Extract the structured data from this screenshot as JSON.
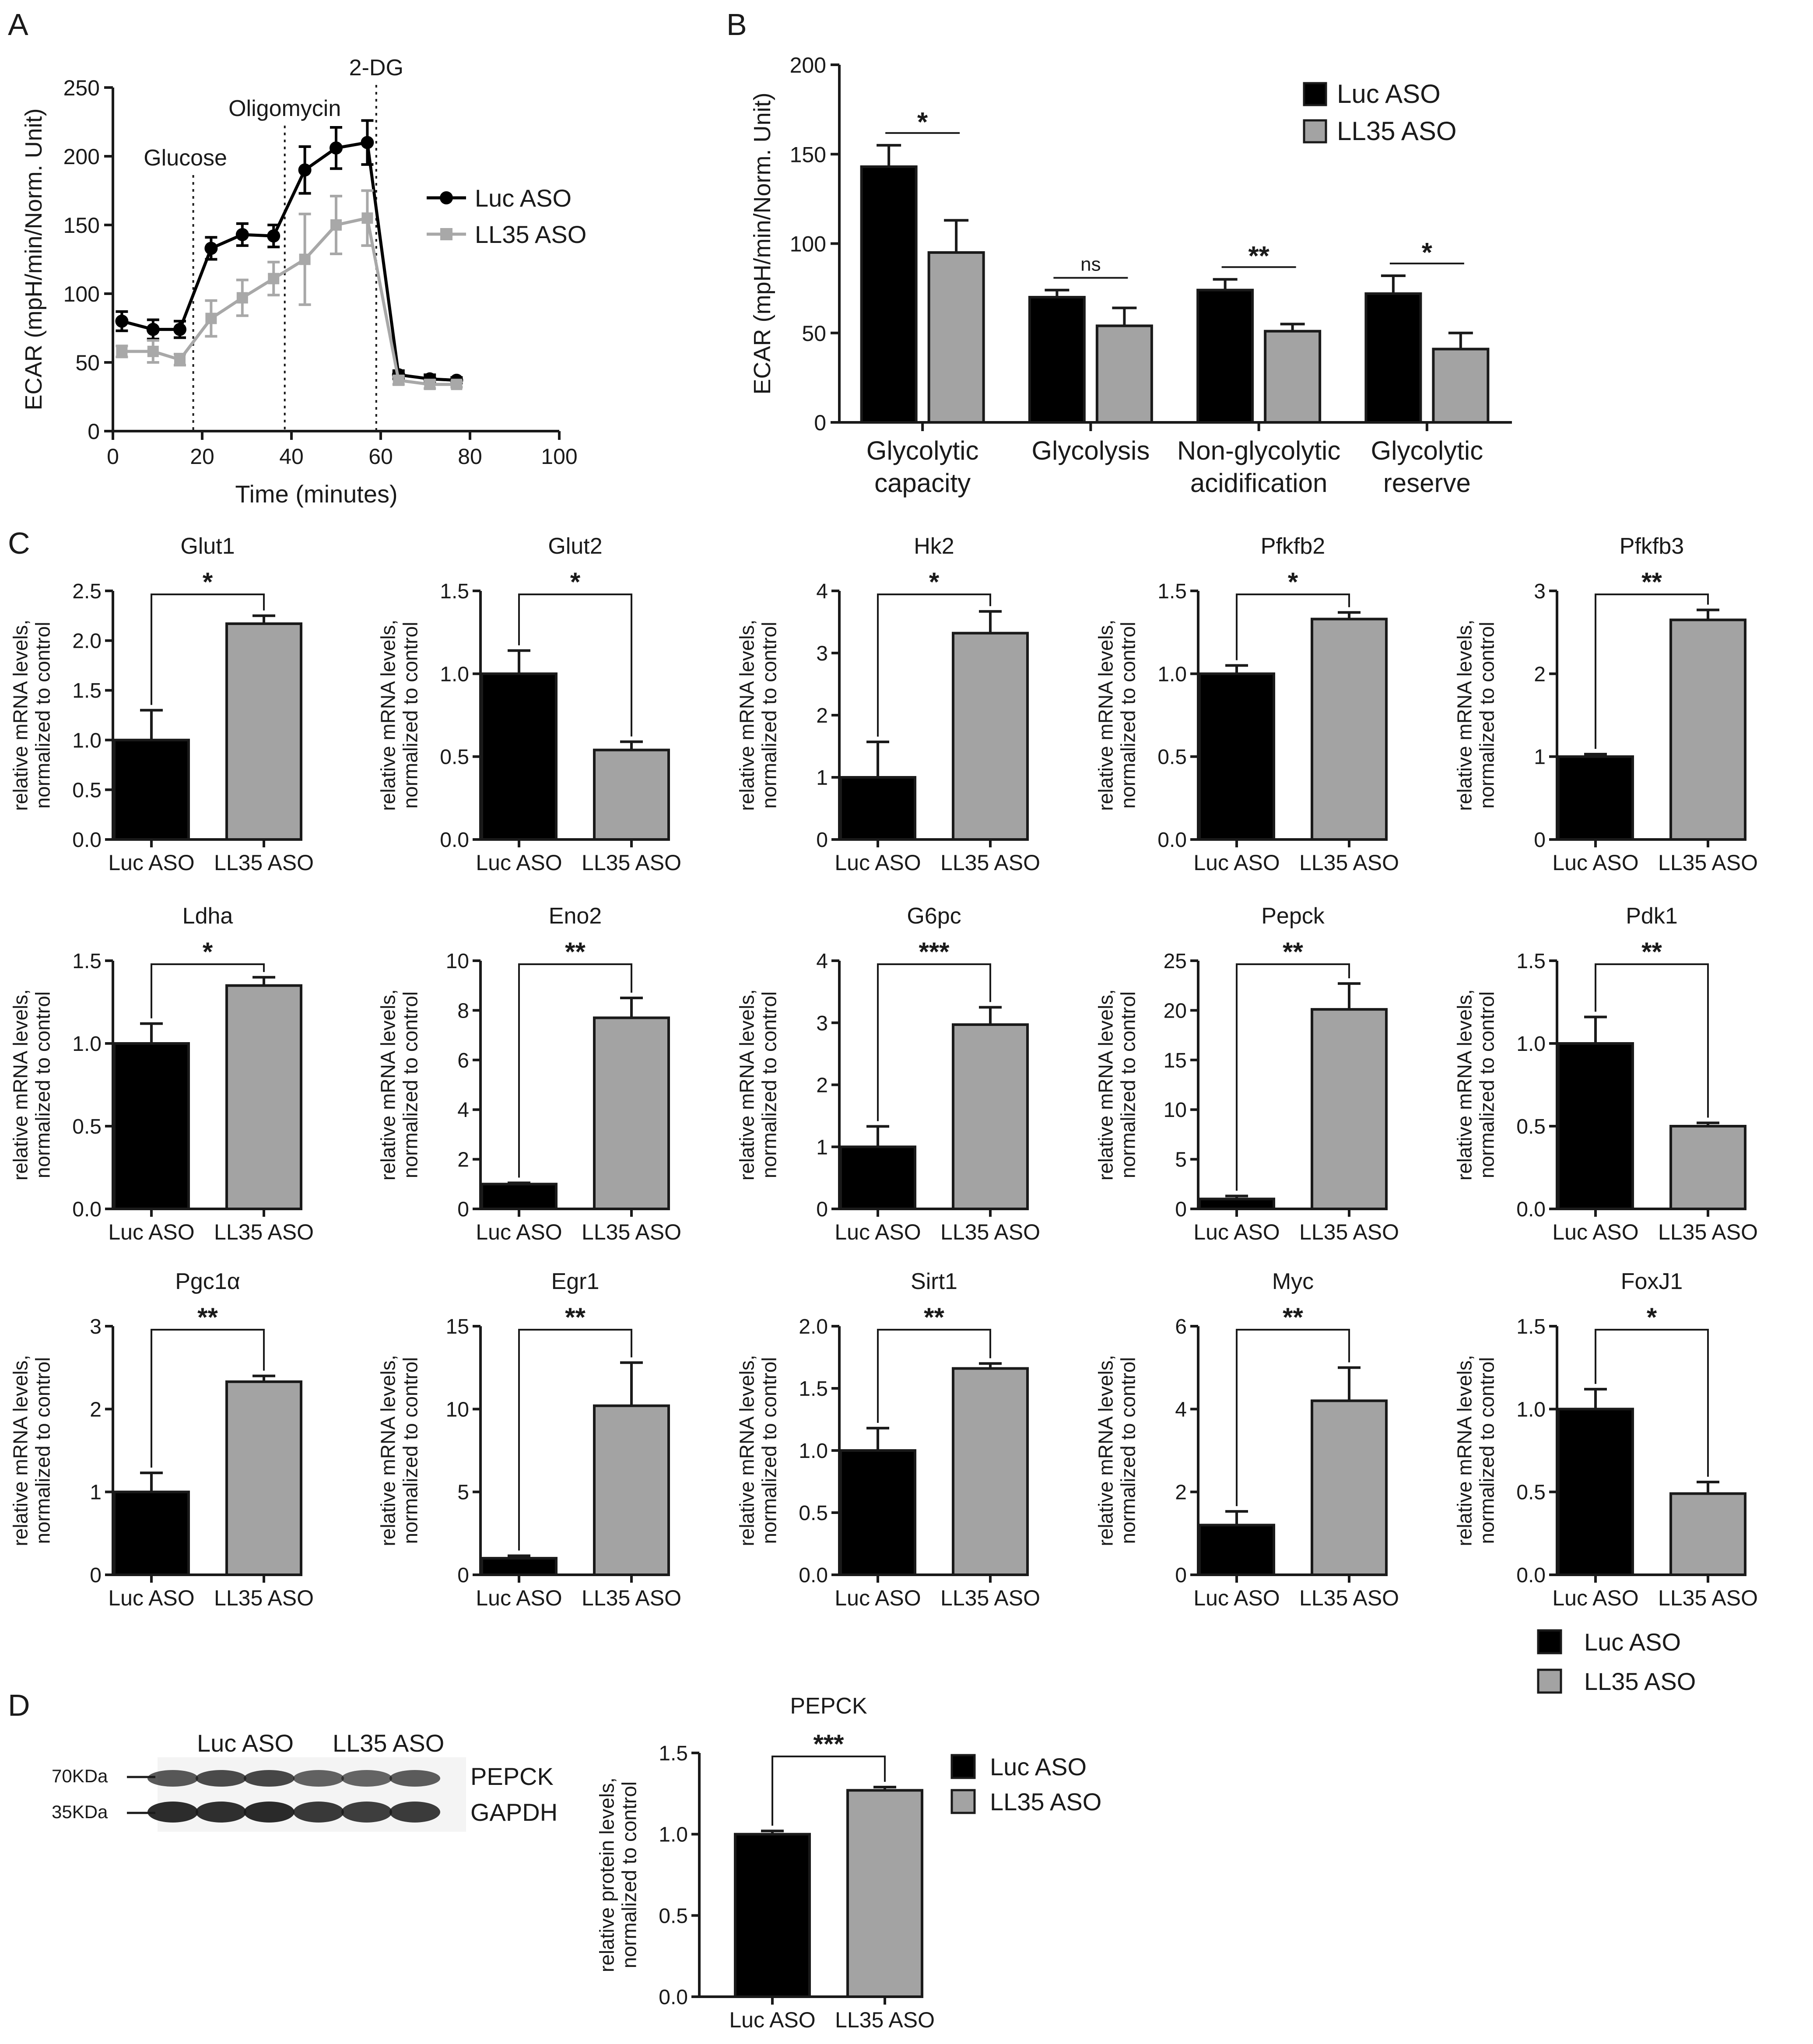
{
  "panel_labels": {
    "a": "A",
    "b": "B",
    "c": "C",
    "d": "D"
  },
  "colors": {
    "luc": "#000000",
    "ll35": "#a3a3a3",
    "ll35_line": "#a8a8a8"
  },
  "legend": {
    "luc": "Luc ASO",
    "ll35": "LL35 ASO"
  },
  "chart_data": [
    {
      "id": "A",
      "type": "line",
      "title": "",
      "xlabel": "Time (minutes)",
      "ylabel": "ECAR (mpH/min/Norm. Unit)",
      "xlim": [
        0,
        100
      ],
      "ylim": [
        0,
        250
      ],
      "xticks": [
        "0",
        "20",
        "40",
        "60",
        "80",
        "100"
      ],
      "yticks": [
        "0",
        "50",
        "100",
        "150",
        "200",
        "250"
      ],
      "annotations": [
        {
          "label": "Glucose",
          "x": 18
        },
        {
          "label": "Oligomycin",
          "x": 38.5
        },
        {
          "label": "2-DG",
          "x": 59
        }
      ],
      "series": [
        {
          "name": "Luc ASO",
          "x": [
            2,
            9,
            15,
            22,
            29,
            36,
            43,
            50,
            57,
            64,
            71,
            77
          ],
          "y": [
            80,
            74,
            74,
            133,
            143,
            142,
            190,
            206,
            210,
            41,
            38,
            37
          ],
          "err": [
            7,
            7,
            6,
            8,
            8,
            8,
            17,
            15,
            16,
            3,
            3,
            2
          ]
        },
        {
          "name": "LL35 ASO",
          "x": [
            2,
            9,
            15,
            22,
            29,
            36,
            43,
            50,
            57,
            64,
            71,
            77
          ],
          "y": [
            58,
            58,
            52,
            82,
            97,
            111,
            125,
            150,
            155,
            37,
            34,
            34
          ],
          "err": [
            4,
            8,
            4,
            13,
            13,
            12,
            33,
            21,
            20,
            3,
            3,
            2
          ]
        }
      ]
    },
    {
      "id": "B",
      "type": "bar",
      "ylabel": "ECAR (mpH/min/Norm. Unit)",
      "ylim": [
        0,
        200
      ],
      "yticks": [
        "0",
        "50",
        "100",
        "150",
        "200"
      ],
      "categories": [
        "Glycolytic\ncapacity",
        "Glycolysis",
        "Non-glycolytic\nacidification",
        "Glycolytic\nreserve"
      ],
      "series": [
        {
          "name": "Luc ASO",
          "values": [
            143,
            70,
            74,
            72
          ],
          "err": [
            12,
            4,
            6,
            10
          ]
        },
        {
          "name": "LL35 ASO",
          "values": [
            95,
            54,
            51,
            41
          ],
          "err": [
            18,
            10,
            4,
            9
          ]
        }
      ],
      "significance": [
        "*",
        "ns",
        "**",
        "*"
      ]
    },
    {
      "id": "Glut1",
      "type": "bar",
      "title": "Glut1",
      "ylabel": "relative mRNA levels,\nnormalized to control",
      "categories": [
        "Luc ASO",
        "LL35 ASO"
      ],
      "values": [
        1.0,
        2.17
      ],
      "err": [
        0.3,
        0.08
      ],
      "ylim": [
        0,
        2.5
      ],
      "yticks": [
        "0.0",
        "0.5",
        "1.0",
        "1.5",
        "2.0",
        "2.5"
      ],
      "significance": "*"
    },
    {
      "id": "Glut2",
      "type": "bar",
      "title": "Glut2",
      "ylabel": "relative mRNA levels,\nnormalized to control",
      "categories": [
        "Luc ASO",
        "LL35 ASO"
      ],
      "values": [
        1.0,
        0.54
      ],
      "err": [
        0.14,
        0.05
      ],
      "ylim": [
        0,
        1.5
      ],
      "yticks": [
        "0.0",
        "0.5",
        "1.0",
        "1.5"
      ],
      "significance": "*"
    },
    {
      "id": "Hk2",
      "type": "bar",
      "title": "Hk2",
      "ylabel": "relative mRNA levels,\nnormalized to control",
      "categories": [
        "Luc ASO",
        "LL35 ASO"
      ],
      "values": [
        1.0,
        3.32
      ],
      "err": [
        0.57,
        0.35
      ],
      "ylim": [
        0,
        4
      ],
      "yticks": [
        "0",
        "1",
        "2",
        "3",
        "4"
      ],
      "significance": "*"
    },
    {
      "id": "Pfkfb2",
      "type": "bar",
      "title": "Pfkfb2",
      "ylabel": "relative mRNA levels,\nnormalized to control",
      "categories": [
        "Luc ASO",
        "LL35 ASO"
      ],
      "values": [
        1.0,
        1.33
      ],
      "err": [
        0.05,
        0.04
      ],
      "ylim": [
        0,
        1.5
      ],
      "yticks": [
        "0.0",
        "0.5",
        "1.0",
        "1.5"
      ],
      "significance": "*"
    },
    {
      "id": "Pfkfb3",
      "type": "bar",
      "title": "Pfkfb3",
      "ylabel": "relative mRNA levels,\nnormalized to control",
      "categories": [
        "Luc ASO",
        "LL35 ASO"
      ],
      "values": [
        1.0,
        2.65
      ],
      "err": [
        0.03,
        0.12
      ],
      "ylim": [
        0,
        3
      ],
      "yticks": [
        "0",
        "1",
        "2",
        "3"
      ],
      "significance": "**"
    },
    {
      "id": "Ldha",
      "type": "bar",
      "title": "Ldha",
      "ylabel": "relative mRNA levels,\nnormalized to control",
      "categories": [
        "Luc ASO",
        "LL35 ASO"
      ],
      "values": [
        1.0,
        1.35
      ],
      "err": [
        0.12,
        0.05
      ],
      "ylim": [
        0,
        1.5
      ],
      "yticks": [
        "0.0",
        "0.5",
        "1.0",
        "1.5"
      ],
      "significance": "*"
    },
    {
      "id": "Eno2",
      "type": "bar",
      "title": "Eno2",
      "ylabel": "relative mRNA levels,\nnormalized to control",
      "categories": [
        "Luc ASO",
        "LL35 ASO"
      ],
      "values": [
        1.0,
        7.7
      ],
      "err": [
        0.05,
        0.8
      ],
      "ylim": [
        0,
        10
      ],
      "yticks": [
        "0",
        "2",
        "4",
        "6",
        "8",
        "10"
      ],
      "significance": "**"
    },
    {
      "id": "G6pc",
      "type": "bar",
      "title": "G6pc",
      "ylabel": "relative mRNA levels,\nnormalized to control",
      "categories": [
        "Luc ASO",
        "LL35 ASO"
      ],
      "values": [
        1.0,
        2.97
      ],
      "err": [
        0.33,
        0.28
      ],
      "ylim": [
        0,
        4
      ],
      "yticks": [
        "0",
        "1",
        "2",
        "3",
        "4"
      ],
      "significance": "***"
    },
    {
      "id": "Pepck",
      "type": "bar",
      "title": "Pepck",
      "ylabel": "relative mRNA levels,\nnormalized to control",
      "categories": [
        "Luc ASO",
        "LL35 ASO"
      ],
      "values": [
        1.0,
        20.1
      ],
      "err": [
        0.3,
        2.6
      ],
      "ylim": [
        0,
        25
      ],
      "yticks": [
        "0",
        "5",
        "10",
        "15",
        "20",
        "25"
      ],
      "significance": "**"
    },
    {
      "id": "Pdk1",
      "type": "bar",
      "title": "Pdk1",
      "ylabel": "relative mRNA levels,\nnormalized to control",
      "categories": [
        "Luc ASO",
        "LL35 ASO"
      ],
      "values": [
        1.0,
        0.5
      ],
      "err": [
        0.16,
        0.02
      ],
      "ylim": [
        0,
        1.5
      ],
      "yticks": [
        "0.0",
        "0.5",
        "1.0",
        "1.5"
      ],
      "significance": "**"
    },
    {
      "id": "Pgc1a",
      "type": "bar",
      "title": "Pgc1α",
      "ylabel": "relative mRNA levels,\nnormalized to control",
      "categories": [
        "Luc ASO",
        "LL35 ASO"
      ],
      "values": [
        1.0,
        2.33
      ],
      "err": [
        0.23,
        0.07
      ],
      "ylim": [
        0,
        3
      ],
      "yticks": [
        "0",
        "1",
        "2",
        "3"
      ],
      "significance": "**"
    },
    {
      "id": "Egr1",
      "type": "bar",
      "title": "Egr1",
      "ylabel": "relative mRNA levels,\nnormalized to control",
      "categories": [
        "Luc ASO",
        "LL35 ASO"
      ],
      "values": [
        1.0,
        10.2
      ],
      "err": [
        0.15,
        2.6
      ],
      "ylim": [
        0,
        15
      ],
      "yticks": [
        "0",
        "5",
        "10",
        "15"
      ],
      "significance": "**"
    },
    {
      "id": "Sirt1",
      "type": "bar",
      "title": "Sirt1",
      "ylabel": "relative mRNA levels,\nnormalized to control",
      "categories": [
        "Luc ASO",
        "LL35 ASO"
      ],
      "values": [
        1.0,
        1.66
      ],
      "err": [
        0.18,
        0.04
      ],
      "ylim": [
        0,
        2.0
      ],
      "yticks": [
        "0.0",
        "0.5",
        "1.0",
        "1.5",
        "2.0"
      ],
      "significance": "**"
    },
    {
      "id": "Myc",
      "type": "bar",
      "title": "Myc",
      "ylabel": "relative mRNA levels,\nnormalized to control",
      "categories": [
        "Luc ASO",
        "LL35 ASO"
      ],
      "values": [
        1.2,
        4.2
      ],
      "err": [
        0.33,
        0.8
      ],
      "ylim": [
        0,
        6
      ],
      "yticks": [
        "0",
        "2",
        "4",
        "6"
      ],
      "significance": "**"
    },
    {
      "id": "FoxJ1",
      "type": "bar",
      "title": "FoxJ1",
      "ylabel": "relative mRNA levels,\nnormalized to control",
      "categories": [
        "Luc ASO",
        "LL35 ASO"
      ],
      "values": [
        1.0,
        0.49
      ],
      "err": [
        0.12,
        0.07
      ],
      "ylim": [
        0,
        1.5
      ],
      "yticks": [
        "0.0",
        "0.5",
        "1.0",
        "1.5"
      ],
      "significance": "*"
    },
    {
      "id": "PEPCK_protein",
      "type": "bar",
      "title": "PEPCK",
      "ylabel": "relative protein levels,\nnormalized to control",
      "categories": [
        "Luc ASO",
        "LL35 ASO"
      ],
      "values": [
        1.0,
        1.27
      ],
      "err": [
        0.02,
        0.02
      ],
      "ylim": [
        0,
        1.5
      ],
      "yticks": [
        "0.0",
        "0.5",
        "1.0",
        "1.5"
      ],
      "significance": "***"
    }
  ],
  "blot": {
    "lane_labels": [
      "Luc ASO",
      "LL35 ASO"
    ],
    "markers": [
      "70KDa",
      "35KDa"
    ],
    "bands": [
      "PEPCK",
      "GAPDH"
    ],
    "band_intensity": {
      "PEPCK": [
        0.72,
        0.78,
        0.8,
        0.68,
        0.66,
        0.7
      ],
      "GAPDH": [
        0.92,
        0.9,
        0.93,
        0.86,
        0.84,
        0.85
      ]
    }
  }
}
